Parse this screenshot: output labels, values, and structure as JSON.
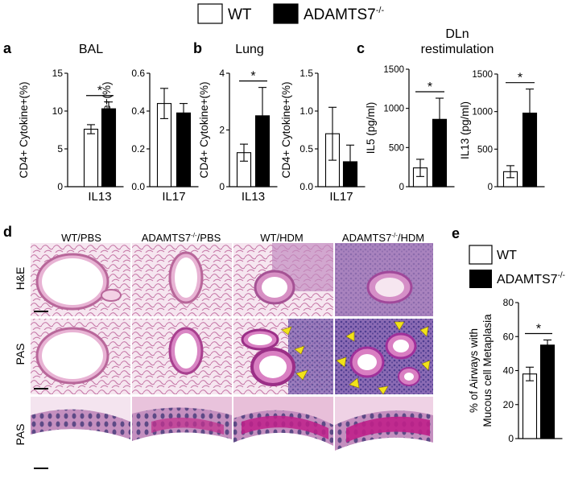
{
  "legend_top": {
    "wt": "WT",
    "ko": "ADAMTS7",
    "ko_sup": "-/-"
  },
  "panels": {
    "a": {
      "letter": "a",
      "title": "BAL"
    },
    "b": {
      "letter": "b",
      "title": "Lung"
    },
    "c": {
      "letter": "c",
      "title_line1": "DLn",
      "title_line2": "restimulation"
    },
    "d": {
      "letter": "d"
    },
    "e": {
      "letter": "e"
    }
  },
  "micro": {
    "columns": [
      {
        "text": "WT/PBS",
        "sup": "",
        "rest": ""
      },
      {
        "text": "ADAMTS7",
        "sup": "-/-",
        "rest": "/PBS"
      },
      {
        "text": "WT/HDM",
        "sup": "",
        "rest": ""
      },
      {
        "text": "ADAMTS7",
        "sup": "-/-",
        "rest": "/HDM"
      }
    ],
    "rows": [
      "H&E",
      "PAS",
      "PAS"
    ]
  },
  "legend_e": {
    "wt": "WT",
    "ko": "ADAMTS7",
    "ko_sup": "-/-"
  },
  "colors": {
    "wt": "#ffffff",
    "ko": "#000000",
    "he": "#e7b2cf",
    "pas": "#d97fc2",
    "pas_dense": "#6f57a8",
    "arrow": "#f2e21a"
  },
  "chart_data": [
    {
      "id": "a1",
      "panel": "a",
      "type": "bar",
      "categories": [
        "IL13"
      ],
      "ylabel": "CD4+ Cytokine+(%)",
      "ylim": [
        0,
        15
      ],
      "yticks": [
        0,
        5,
        10,
        15
      ],
      "series": [
        {
          "name": "WT",
          "values": [
            7.6
          ],
          "err": [
            0.6
          ]
        },
        {
          "name": "ADAMTS7-/-",
          "values": [
            10.3
          ],
          "err": [
            0.9
          ]
        }
      ],
      "significance": "*"
    },
    {
      "id": "a2",
      "panel": "a",
      "type": "bar",
      "categories": [
        "IL17"
      ],
      "ylabel": "CD4+ Cytokine+(%)",
      "ylim": [
        0,
        0.6
      ],
      "yticks": [
        0.0,
        0.2,
        0.4,
        0.6
      ],
      "series": [
        {
          "name": "WT",
          "values": [
            0.44
          ],
          "err": [
            0.08
          ]
        },
        {
          "name": "ADAMTS7-/-",
          "values": [
            0.39
          ],
          "err": [
            0.05
          ]
        }
      ],
      "significance": ""
    },
    {
      "id": "b1",
      "panel": "b",
      "type": "bar",
      "categories": [
        "IL13"
      ],
      "ylabel": "CD4+ Cytokine+(%)",
      "ylim": [
        0,
        4
      ],
      "yticks": [
        0,
        2,
        4
      ],
      "series": [
        {
          "name": "WT",
          "values": [
            1.2
          ],
          "err": [
            0.3
          ]
        },
        {
          "name": "ADAMTS7-/-",
          "values": [
            2.5
          ],
          "err": [
            1.0
          ]
        }
      ],
      "significance": "*"
    },
    {
      "id": "b2",
      "panel": "b",
      "type": "bar",
      "categories": [
        "IL17"
      ],
      "ylabel": "CD4+ Cytokine+(%)",
      "ylim": [
        0,
        1.5
      ],
      "yticks": [
        0.0,
        0.5,
        1.0,
        1.5
      ],
      "series": [
        {
          "name": "WT",
          "values": [
            0.7
          ],
          "err": [
            0.35
          ]
        },
        {
          "name": "ADAMTS7-/-",
          "values": [
            0.33
          ],
          "err": [
            0.22
          ]
        }
      ],
      "significance": ""
    },
    {
      "id": "c1",
      "panel": "c",
      "type": "bar",
      "categories": [
        ""
      ],
      "ylabel": "IL5 (pg/ml)",
      "ylim": [
        0,
        1500
      ],
      "yticks": [
        0,
        500,
        1000,
        1500
      ],
      "series": [
        {
          "name": "WT",
          "values": [
            240
          ],
          "err": [
            110
          ]
        },
        {
          "name": "ADAMTS7-/-",
          "values": [
            860
          ],
          "err": [
            270
          ]
        }
      ],
      "significance": "*"
    },
    {
      "id": "c2",
      "panel": "c",
      "type": "bar",
      "categories": [
        ""
      ],
      "ylabel": "IL13 (pg/ml)",
      "ylim": [
        0,
        1500
      ],
      "yticks": [
        0,
        500,
        1000,
        1500
      ],
      "series": [
        {
          "name": "WT",
          "values": [
            200
          ],
          "err": [
            80
          ]
        },
        {
          "name": "ADAMTS7-/-",
          "values": [
            980
          ],
          "err": [
            320
          ]
        }
      ],
      "significance": "*"
    },
    {
      "id": "e1",
      "panel": "e",
      "type": "bar",
      "categories": [
        ""
      ],
      "ylabel": "% of Airways with|Mucous cell Metaplasia",
      "ylim": [
        0,
        80
      ],
      "yticks": [
        0,
        20,
        40,
        60,
        80
      ],
      "series": [
        {
          "name": "WT",
          "values": [
            38
          ],
          "err": [
            4
          ]
        },
        {
          "name": "ADAMTS7-/-",
          "values": [
            55
          ],
          "err": [
            3
          ]
        }
      ],
      "significance": "*"
    }
  ]
}
